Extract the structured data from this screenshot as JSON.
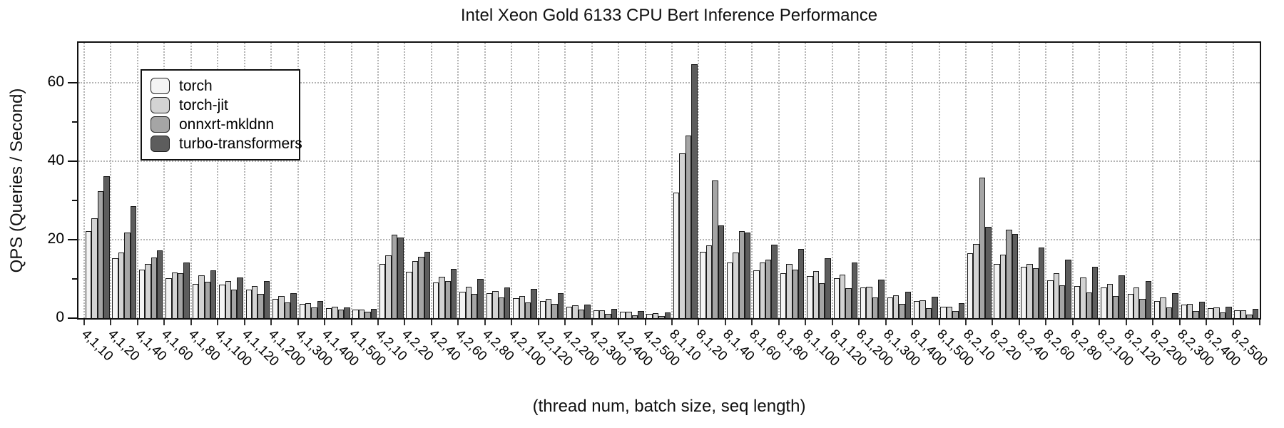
{
  "title": "Intel Xeon Gold 6133 CPU Bert Inference Performance",
  "chart_data": {
    "type": "bar",
    "title": "Intel Xeon Gold 6133 CPU Bert Inference Performance",
    "xlabel": "(thread num, batch size, seq length)",
    "ylabel": "QPS (Queries / Second)",
    "ylim": [
      0,
      70.2
    ],
    "yticks_major": [
      0,
      20,
      40,
      60
    ],
    "yticks_minor": [
      10,
      30,
      50
    ],
    "grid": true,
    "legend_position": "upper-left",
    "bar_edge_color": "#1a1a1a",
    "categories": [
      "4,1,10",
      "4,1,20",
      "4,1,40",
      "4,1,60",
      "4,1,80",
      "4,1,100",
      "4,1,120",
      "4,1,200",
      "4,1,300",
      "4,1,400",
      "4,1,500",
      "4,2,10",
      "4,2,20",
      "4,2,40",
      "4,2,60",
      "4,2,80",
      "4,2,100",
      "4,2,120",
      "4,2,200",
      "4,2,300",
      "4,2,400",
      "4,2,500",
      "8,1,10",
      "8,1,20",
      "8,1,40",
      "8,1,60",
      "8,1,80",
      "8,1,100",
      "8,1,120",
      "8,1,200",
      "8,1,300",
      "8,1,400",
      "8,1,500",
      "8,2,10",
      "8,2,20",
      "8,2,40",
      "8,2,60",
      "8,2,80",
      "8,2,100",
      "8,2,120",
      "8,2,200",
      "8,2,300",
      "8,2,400",
      "8,2,500"
    ],
    "series": [
      {
        "name": "torch",
        "color": "#f4f4f4",
        "values": [
          22.2,
          15.2,
          12.4,
          10.1,
          8.8,
          8.6,
          7.3,
          5.0,
          3.6,
          2.5,
          2.1,
          13.8,
          11.8,
          9.1,
          6.8,
          6.4,
          5.1,
          4.4,
          3.0,
          2.0,
          1.6,
          1.1,
          32.0,
          17.0,
          14.2,
          12.2,
          11.4,
          10.7,
          10.1,
          7.9,
          5.3,
          4.3,
          3.0,
          16.6,
          13.8,
          13.1,
          9.7,
          8.2,
          7.9,
          6.2,
          4.4,
          3.5,
          2.5,
          2.0
        ]
      },
      {
        "name": "torch-jit",
        "color": "#d3d3d3",
        "values": [
          25.5,
          16.8,
          13.9,
          11.7,
          10.9,
          9.5,
          8.2,
          5.6,
          3.9,
          3.0,
          2.1,
          16.0,
          14.6,
          10.5,
          8.0,
          6.9,
          5.6,
          4.9,
          3.2,
          2.0,
          1.7,
          1.2,
          42.0,
          18.6,
          16.8,
          14.2,
          13.9,
          12.0,
          11.1,
          8.0,
          5.8,
          4.6,
          3.0,
          19.0,
          16.2,
          13.8,
          11.4,
          10.3,
          8.8,
          7.8,
          5.2,
          3.7,
          2.8,
          2.0
        ]
      },
      {
        "name": "onnxrt-mkldnn",
        "color": "#a5a5a5",
        "values": [
          32.4,
          21.8,
          15.5,
          11.4,
          9.2,
          7.2,
          6.2,
          4.0,
          2.8,
          2.1,
          1.7,
          21.2,
          15.6,
          9.4,
          6.2,
          5.2,
          4.0,
          3.6,
          2.2,
          1.1,
          0.8,
          0.6,
          46.5,
          35.1,
          22.1,
          15.0,
          12.3,
          9.0,
          7.7,
          5.3,
          3.6,
          2.5,
          1.9,
          35.9,
          22.6,
          12.8,
          8.4,
          6.5,
          5.6,
          4.9,
          2.8,
          1.8,
          1.4,
          1.0
        ]
      },
      {
        "name": "turbo-transformers",
        "color": "#5d5d5d",
        "values": [
          36.2,
          28.5,
          17.2,
          14.2,
          12.1,
          10.4,
          9.4,
          6.4,
          4.3,
          2.8,
          2.4,
          20.5,
          17.0,
          12.5,
          10.0,
          7.9,
          7.5,
          6.4,
          3.5,
          2.3,
          1.9,
          1.4,
          64.8,
          23.6,
          21.9,
          18.7,
          17.7,
          15.3,
          14.1,
          9.9,
          6.8,
          5.5,
          3.8,
          23.3,
          21.5,
          18.0,
          15.0,
          13.1,
          10.9,
          9.4,
          6.4,
          4.2,
          3.0,
          2.3
        ]
      }
    ]
  }
}
